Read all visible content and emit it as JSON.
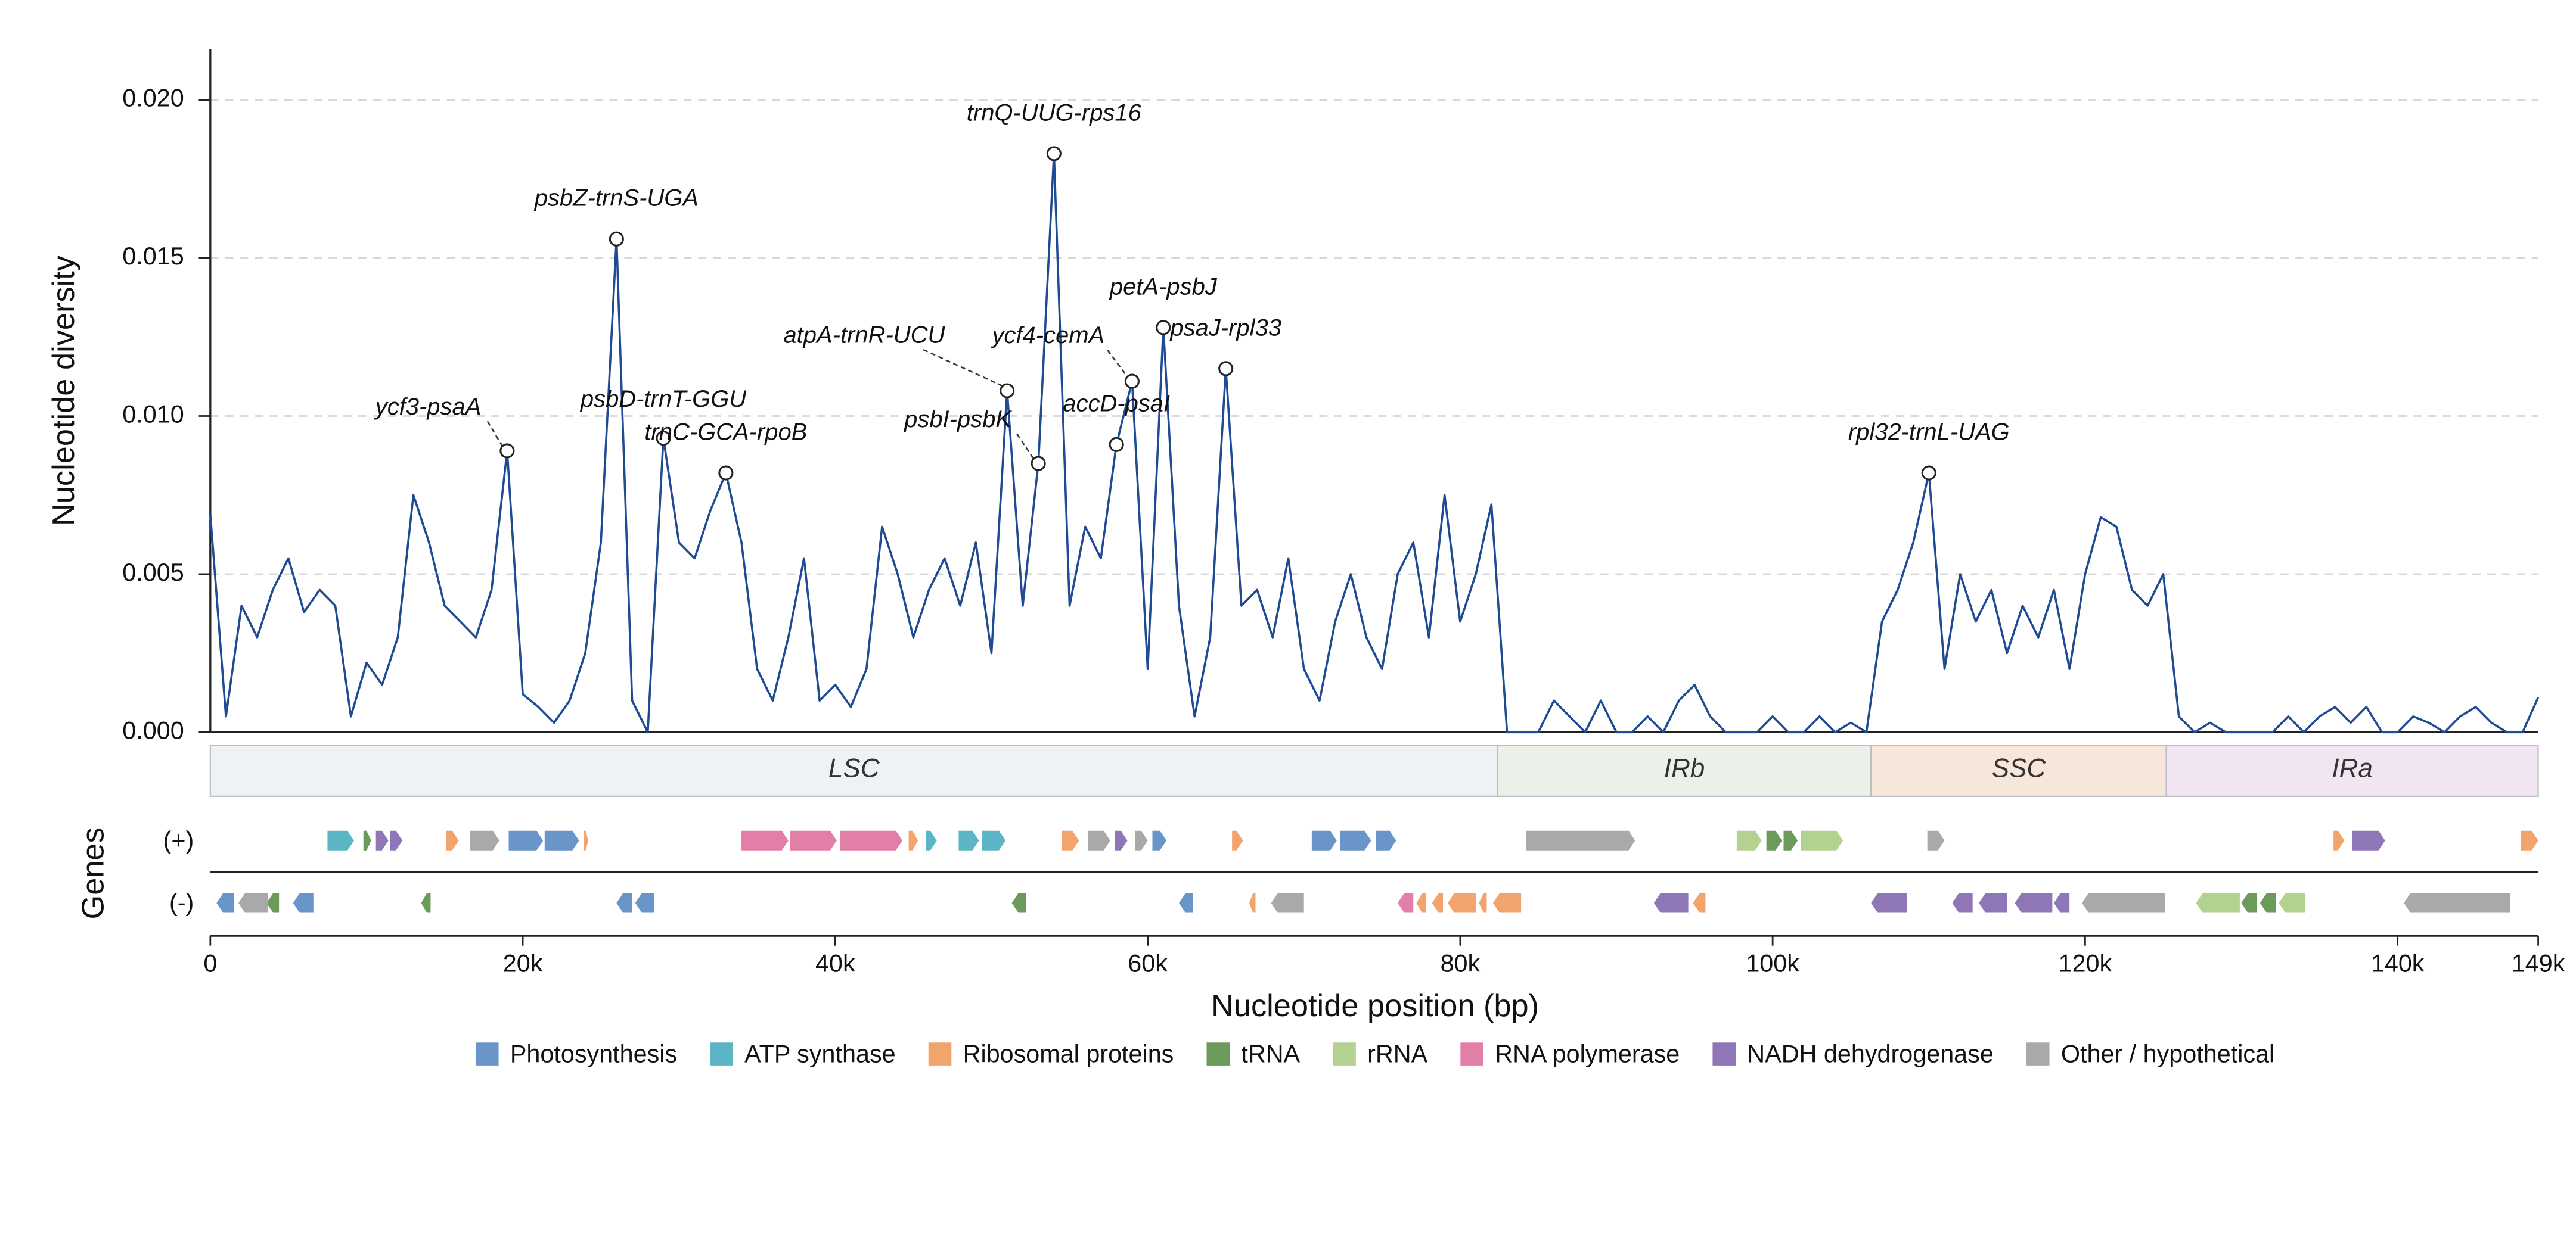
{
  "chart_data": {
    "type": "line",
    "y_label": "Nucleotide diversity",
    "x_label": "Nucleotide position (bp)",
    "color": "#1f4a94",
    "xlim": [
      0,
      149000
    ],
    "ylim": [
      0,
      0.0216
    ],
    "grid": true,
    "yticks": [
      {
        "value": 0,
        "label": "0.000"
      },
      0.005,
      {
        "value": 0.01,
        "label": "0.010"
      },
      0.015,
      {
        "value": 0.02,
        "label": "0.020"
      }
    ],
    "xticks": [
      0,
      {
        "value": 20000,
        "label": "20k"
      },
      {
        "value": 40000,
        "label": "40k"
      },
      {
        "value": 60000,
        "label": "60k"
      },
      {
        "value": 80000,
        "label": "80k"
      },
      {
        "value": 100000,
        "label": "100k"
      },
      {
        "value": 120000,
        "label": "120k"
      },
      {
        "value": 140000,
        "label": "140k"
      },
      {
        "value": 149000,
        "label": "149k"
      }
    ],
    "x": [
      0,
      1000,
      2000,
      3000,
      4000,
      5000,
      6000,
      7000,
      8000,
      9000,
      10000,
      11000,
      12000,
      13000,
      14000,
      15000,
      16000,
      17000,
      18000,
      19000,
      20000,
      21000,
      22000,
      23000,
      24000,
      25000,
      26000,
      27000,
      28000,
      29000,
      30000,
      31000,
      32000,
      33000,
      34000,
      35000,
      36000,
      37000,
      38000,
      39000,
      40000,
      41000,
      42000,
      43000,
      44000,
      45000,
      46000,
      47000,
      48000,
      49000,
      50000,
      51000,
      52000,
      53000,
      54000,
      55000,
      56000,
      57000,
      58000,
      59000,
      60000,
      61000,
      62000,
      63000,
      64000,
      65000,
      66000,
      67000,
      68000,
      69000,
      70000,
      71000,
      72000,
      73000,
      74000,
      75000,
      76000,
      77000,
      78000,
      79000,
      80000,
      81000,
      82000,
      83000,
      84000,
      85000,
      86000,
      87000,
      88000,
      89000,
      90000,
      91000,
      92000,
      93000,
      94000,
      95000,
      96000,
      97000,
      98000,
      99000,
      100000,
      101000,
      102000,
      103000,
      104000,
      105000,
      106000,
      107000,
      108000,
      109000,
      110000,
      111000,
      112000,
      113000,
      114000,
      115000,
      116000,
      117000,
      118000,
      119000,
      120000,
      121000,
      122000,
      123000,
      124000,
      125000,
      126000,
      127000,
      128000,
      129000,
      130000,
      131000,
      132000,
      133000,
      134000,
      135000,
      136000,
      137000,
      138000,
      139000,
      140000,
      141000,
      142000,
      143000,
      144000,
      145000,
      146000,
      147000,
      148000,
      149000
    ],
    "values": [
      0.0069,
      0.0005,
      0.004,
      0.003,
      0.0045,
      0.0055,
      0.0038,
      0.0045,
      0.004,
      0.0005,
      0.0022,
      0.0015,
      0.003,
      0.0075,
      0.006,
      0.004,
      0.0035,
      0.003,
      0.0045,
      0.0089,
      0.0012,
      0.0008,
      0.0003,
      0.001,
      0.0025,
      0.006,
      0.0156,
      0.001,
      0,
      0.0093,
      0.006,
      0.0055,
      0.007,
      0.0082,
      0.006,
      0.002,
      0.001,
      0.003,
      0.0055,
      0.001,
      0.0015,
      0.0008,
      0.002,
      0.0065,
      0.005,
      0.003,
      0.0045,
      0.0055,
      0.004,
      0.006,
      0.0025,
      0.0108,
      0.004,
      0.0085,
      0.0183,
      0.004,
      0.0065,
      0.0055,
      0.0091,
      0.0111,
      0.002,
      0.0128,
      0.004,
      0.0005,
      0.003,
      0.0115,
      0.004,
      0.0045,
      0.003,
      0.0055,
      0.002,
      0.001,
      0.0035,
      0.005,
      0.003,
      0.002,
      0.005,
      0.006,
      0.003,
      0.0075,
      0.0035,
      0.005,
      0.0072,
      0,
      0,
      0,
      0.001,
      0.0005,
      0,
      0.001,
      0,
      0,
      0.0005,
      0,
      0.001,
      0.0015,
      0.0005,
      0,
      0,
      0,
      0.0005,
      0,
      0,
      0.0005,
      0,
      0.0003,
      0,
      0.0035,
      0.0045,
      0.006,
      0.0082,
      0.002,
      0.005,
      0.0035,
      0.0045,
      0.0025,
      0.004,
      0.003,
      0.0045,
      0.002,
      0.005,
      0.0068,
      0.0065,
      0.0045,
      0.004,
      0.005,
      0.0005,
      0,
      0.0003,
      0,
      0,
      0,
      0,
      0.0005,
      0,
      0.0005,
      0.0008,
      0.0003,
      0.0008,
      0,
      0,
      0.0005,
      0.0003,
      0,
      0.0005,
      0.0008,
      0.0003,
      0,
      0,
      0.0011
    ],
    "annotations": [
      {
        "text": "ycf3-psaA",
        "x": 19000,
        "y": 0.0089
      },
      {
        "text": "psbZ-trnS-UGA",
        "x": 26000,
        "y": 0.0156
      },
      {
        "text": "psbD-trnT-GGU",
        "x": 29000,
        "y": 0.0093
      },
      {
        "text": "trnC-GCA-rpoB",
        "x": 33000,
        "y": 0.0082
      },
      {
        "text": "atpA-trnR-UCU",
        "x": 51000,
        "y": 0.0108
      },
      {
        "text": "psbI-psbK",
        "x": 53000,
        "y": 0.0085
      },
      {
        "text": "trnQ-UUG-rps16",
        "x": 54000,
        "y": 0.0183
      },
      {
        "text": "accD-psaI",
        "x": 58000,
        "y": 0.0091
      },
      {
        "text": "ycf4-cemA",
        "x": 59000,
        "y": 0.0111
      },
      {
        "text": "petA-psbJ",
        "x": 61000,
        "y": 0.0128
      },
      {
        "text": "psaJ-rpl33",
        "x": 65000,
        "y": 0.0115
      },
      {
        "text": "rpl32-trnL-UAG",
        "x": 110000,
        "y": 0.0082
      }
    ],
    "regions": [
      {
        "name": "LSC",
        "start": 0,
        "end": 82400,
        "color": "#eef2f5"
      },
      {
        "name": "IRb",
        "start": 82400,
        "end": 106300,
        "color": "#ebf1e8"
      },
      {
        "name": "SSC",
        "start": 106300,
        "end": 125200,
        "color": "#f7e7da"
      },
      {
        "name": "IRa",
        "start": 125200,
        "end": 149000,
        "color": "#f0e5f1"
      }
    ],
    "track_labels": {
      "title": "Genes",
      "plus": "(+)",
      "minus": "(-)"
    },
    "gene_categories": [
      {
        "name": "Photosynthesis",
        "color": "#6995c9",
        "plus": [
          [
            19100,
            21300
          ],
          [
            21400,
            23600
          ],
          [
            60300,
            61200
          ],
          [
            70500,
            72100
          ],
          [
            72300,
            74300
          ],
          [
            74600,
            75900
          ]
        ],
        "minus": [
          [
            400,
            1500
          ],
          [
            5300,
            6600
          ],
          [
            26000,
            27000
          ],
          [
            27200,
            28400
          ],
          [
            62000,
            62900
          ]
        ]
      },
      {
        "name": "ATP synthase",
        "color": "#5bb5c5",
        "plus": [
          [
            7500,
            9200
          ],
          [
            45800,
            46500
          ],
          [
            47900,
            49200
          ],
          [
            49400,
            50900
          ]
        ],
        "minus": []
      },
      {
        "name": "Ribosomal proteins",
        "color": "#f2a46d",
        "plus": [
          [
            15100,
            15900
          ],
          [
            23900,
            24200
          ],
          [
            44700,
            45300
          ],
          [
            54500,
            55600
          ],
          [
            65400,
            66100
          ],
          [
            135900,
            136600
          ],
          [
            147900,
            149000
          ]
        ],
        "minus": [
          [
            66500,
            66900
          ],
          [
            77200,
            77800
          ],
          [
            78200,
            78900
          ],
          [
            79200,
            81000
          ],
          [
            81200,
            81700
          ],
          [
            82100,
            83900
          ],
          [
            94900,
            95700
          ]
        ]
      },
      {
        "name": "tRNA",
        "color": "#6b9a5a",
        "plus": [
          [
            9800,
            10300
          ],
          [
            99600,
            100600
          ],
          [
            100700,
            101600
          ]
        ],
        "minus": [
          [
            3600,
            4400
          ],
          [
            13500,
            14100
          ],
          [
            51300,
            52200
          ],
          [
            130000,
            131000
          ],
          [
            131200,
            132200
          ]
        ]
      },
      {
        "name": "rRNA",
        "color": "#b4d28f",
        "plus": [
          [
            97700,
            99300
          ],
          [
            101800,
            104500
          ]
        ],
        "minus": [
          [
            127100,
            129900
          ],
          [
            132400,
            134100
          ]
        ]
      },
      {
        "name": "RNA polymerase",
        "color": "#e17fa9",
        "plus": [
          [
            34000,
            37000
          ],
          [
            37100,
            40100
          ],
          [
            40300,
            44300
          ]
        ],
        "minus": [
          [
            76000,
            77000
          ]
        ]
      },
      {
        "name": "NADH dehydrogenase",
        "color": "#8f76b6",
        "plus": [
          [
            10600,
            11400
          ],
          [
            11500,
            12300
          ],
          [
            57900,
            58700
          ],
          [
            137100,
            139200
          ]
        ],
        "minus": [
          [
            92400,
            94600
          ],
          [
            106300,
            108600
          ],
          [
            111500,
            112800
          ],
          [
            113200,
            115000
          ],
          [
            115500,
            117900
          ],
          [
            118000,
            119000
          ]
        ]
      },
      {
        "name": "Other / hypothetical",
        "color": "#a9a9a9",
        "plus": [
          [
            16600,
            18500
          ],
          [
            56200,
            57600
          ],
          [
            59200,
            60000
          ],
          [
            84200,
            91200
          ],
          [
            109900,
            111000
          ]
        ],
        "minus": [
          [
            1800,
            3700
          ],
          [
            67900,
            70000
          ],
          [
            119800,
            125100
          ],
          [
            140400,
            147200
          ]
        ]
      }
    ]
  }
}
